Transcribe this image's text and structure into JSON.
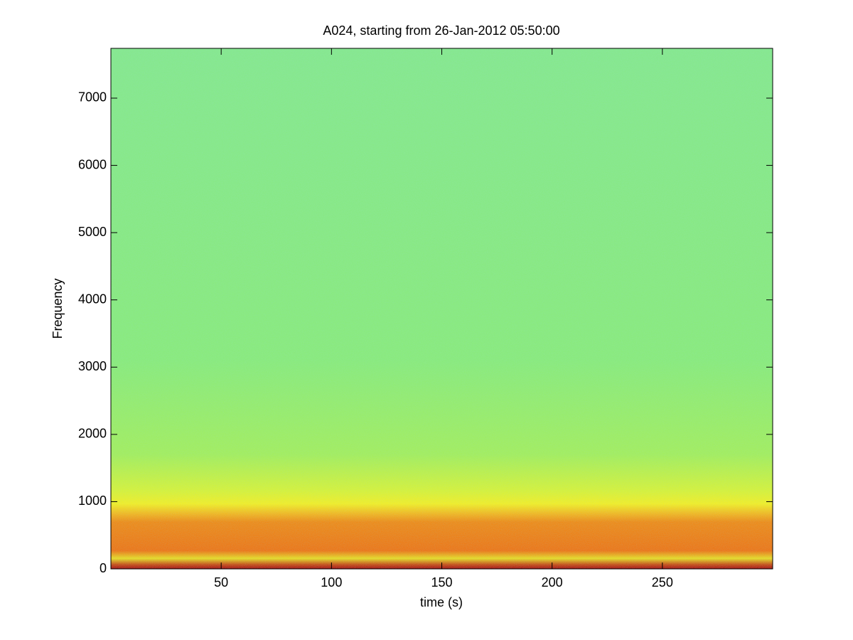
{
  "chart_data": {
    "type": "spectrogram",
    "title": "A024, starting from 26-Jan-2012 05:50:00",
    "x_label": "time (s)",
    "y_label": "Frequency",
    "xlim": [
      0,
      300
    ],
    "xticks": [
      50,
      100,
      150,
      200,
      250
    ],
    "ylim": [
      0,
      7740
    ],
    "yticks": [
      0,
      1000,
      2000,
      3000,
      4000,
      5000,
      6000,
      7000
    ]
  }
}
